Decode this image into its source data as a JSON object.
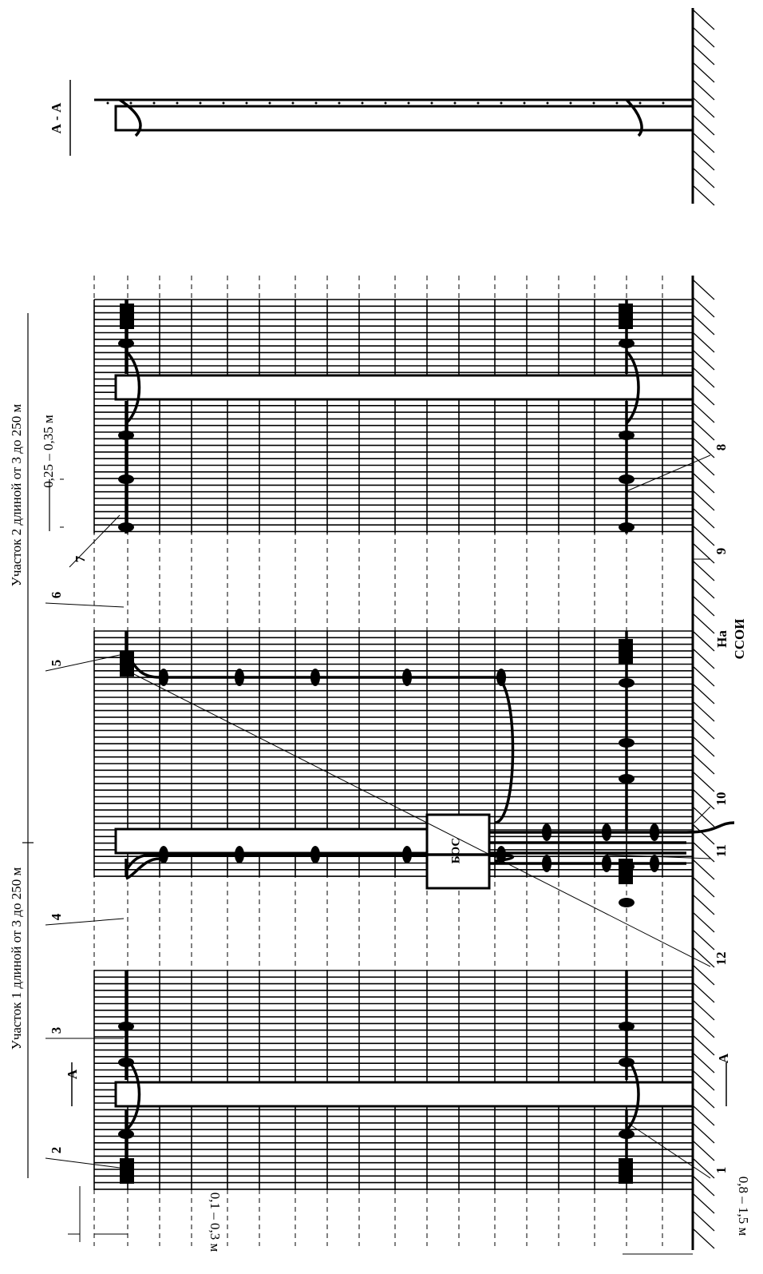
{
  "section_label": "А - А",
  "section_marks": [
    "А",
    "А"
  ],
  "dimensions": {
    "segment_1": "Участок 1 длиной  от 3 до 250 м",
    "segment_2": "Участок 2 длиной  от 3 до 250 м",
    "sensor_pitch": "0,25 – 0,35 м",
    "cable_offset_top": "0,1 – 0,3 м",
    "cable_height": "0,8 – 1,5 м"
  },
  "unit": "БОС",
  "sink": [
    "На",
    "ССОИ"
  ],
  "callouts": [
    "1",
    "2",
    "3",
    "4",
    "5",
    "6",
    "7",
    "8",
    "9",
    "10",
    "11",
    "12"
  ]
}
